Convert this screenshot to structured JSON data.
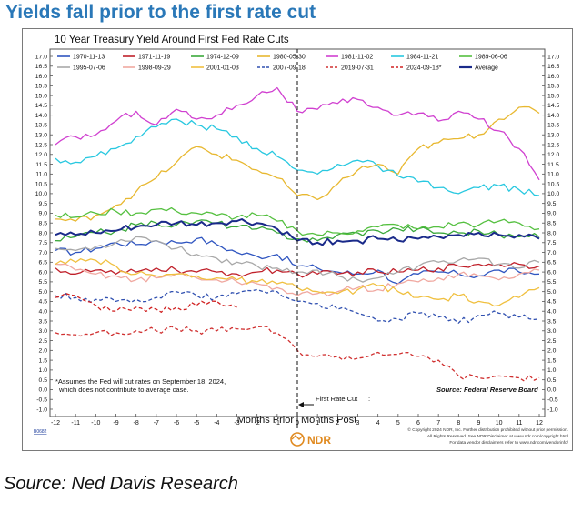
{
  "headline": "Yields fall prior to the first rate cut",
  "source_caption": "Source: Ned Davis Research",
  "chart_data": {
    "type": "line",
    "title": "10 Year Treasury Yield Around First Fed Rate Cuts",
    "xlim": [
      -12,
      12
    ],
    "ylim": [
      -1.0,
      17.0
    ],
    "x_ticks": [
      -12,
      -11,
      -10,
      -9,
      -8,
      -7,
      -6,
      -5,
      -4,
      -3,
      -2,
      -1,
      0,
      1,
      2,
      3,
      4,
      5,
      6,
      7,
      8,
      9,
      10,
      11,
      12
    ],
    "x_tick_labels": [
      "-12",
      "-11",
      "-10",
      "-9",
      "-8",
      "-7",
      "-6",
      "-5",
      "-4",
      "-3",
      "-2",
      "-1",
      "0",
      "1",
      "2",
      "3",
      "4",
      "5",
      "6",
      "7",
      "8",
      "9",
      "10",
      "11",
      "12"
    ],
    "y_ticks": [
      17.0,
      16.5,
      16.0,
      15.5,
      15.0,
      14.5,
      14.0,
      13.5,
      13.0,
      12.5,
      12.0,
      11.5,
      11.0,
      10.5,
      10.0,
      9.5,
      9.0,
      8.5,
      8.0,
      7.5,
      7.0,
      6.5,
      6.0,
      5.5,
      5.0,
      4.5,
      4.0,
      3.5,
      3.0,
      2.5,
      2.0,
      1.5,
      1.0,
      0.5,
      0.0,
      -0.5,
      -1.0
    ],
    "y_tick_labels": [
      "17.0",
      "16.5",
      "16.0",
      "15.5",
      "15.0",
      "14.5",
      "14.0",
      "13.5",
      "13.0",
      "12.5",
      "12.0",
      "11.5",
      "11.0",
      "10.5",
      "10.0",
      "9.5",
      "9.0",
      "8.5",
      "8.0",
      "7.5",
      "7.0",
      "6.5",
      "6.0",
      "5.5",
      "5.0",
      "4.5",
      "4.0",
      "3.5",
      "3.0",
      "2.5",
      "2.0",
      "1.5",
      "1.0",
      "0.5",
      "0.0",
      "-0.5",
      "-1.0"
    ],
    "x_axis_left_label": "Months Prior",
    "x_axis_right_label": "Months Post",
    "cut_marker_label": "First Rate Cut",
    "footnote": [
      "*Assumes the Fed will cut rates on September 18, 2024,",
      "which does not contribute to average case."
    ],
    "source_note": "Source:   Federal Reserve Board",
    "copyright": [
      "© Copyright 2024 NDR, Inc. Further distribution prohibited without prior permission.",
      "All Rights Reserved. See NDR Disclaimer at www.ndr.com/copyright.html",
      "For data vendor disclaimers refer to www.ndr.com/vendorinfo/"
    ],
    "logo_text": "NDR",
    "chart_code": "B0682",
    "legend_position": "top",
    "grid": false,
    "series": [
      {
        "name": "1970-11-13",
        "color": "#2f55c0",
        "dash": false,
        "x": [
          -12,
          -11,
          -10,
          -9,
          -8,
          -7,
          -6,
          -5,
          -4,
          -3,
          -2,
          -1,
          0,
          1,
          2,
          3,
          4,
          5,
          6,
          7,
          8,
          9,
          10,
          11,
          12
        ],
        "y": [
          7.1,
          7.0,
          7.2,
          7.5,
          7.4,
          7.6,
          7.5,
          7.7,
          7.4,
          7.0,
          6.8,
          6.9,
          6.3,
          6.2,
          6.0,
          5.9,
          6.1,
          5.4,
          5.9,
          6.0,
          5.9,
          5.8,
          6.1,
          6.0,
          5.9
        ]
      },
      {
        "name": "1971-11-19",
        "color": "#c0202a",
        "dash": false,
        "x": [
          -12,
          -11,
          -10,
          -9,
          -8,
          -7,
          -6,
          -5,
          -4,
          -3,
          -2,
          -1,
          0,
          1,
          2,
          3,
          4,
          5,
          6,
          7,
          8,
          9,
          10,
          11,
          12
        ],
        "y": [
          6.2,
          5.9,
          6.1,
          5.9,
          6.0,
          6.2,
          6.1,
          6.0,
          6.0,
          5.9,
          6.0,
          6.1,
          5.9,
          5.9,
          5.9,
          6.0,
          6.0,
          6.0,
          6.1,
          6.2,
          6.3,
          6.4,
          6.4,
          6.4,
          6.3
        ]
      },
      {
        "name": "1974-12-09",
        "color": "#3aa83a",
        "dash": false,
        "x": [
          -12,
          -11,
          -10,
          -9,
          -8,
          -7,
          -6,
          -5,
          -4,
          -3,
          -2,
          -1,
          0,
          1,
          2,
          3,
          4,
          5,
          6,
          7,
          8,
          9,
          10,
          11,
          12
        ],
        "y": [
          7.6,
          7.8,
          8.0,
          8.1,
          8.4,
          8.5,
          8.4,
          8.6,
          8.5,
          8.3,
          8.2,
          8.0,
          7.7,
          7.6,
          7.9,
          8.0,
          8.1,
          8.2,
          8.2,
          8.0,
          8.0,
          8.1,
          7.9,
          7.8,
          7.8
        ]
      },
      {
        "name": "1980-05-30",
        "color": "#e8b830",
        "dash": false,
        "x": [
          -12,
          -11,
          -10,
          -9,
          -8,
          -7,
          -6,
          -5,
          -4,
          -3,
          -2,
          -1,
          0,
          1,
          2,
          3,
          4,
          5,
          6,
          7,
          8,
          9,
          10,
          11,
          12
        ],
        "y": [
          8.7,
          8.6,
          8.9,
          9.4,
          10.1,
          10.8,
          11.6,
          12.4,
          12.0,
          11.7,
          11.2,
          10.8,
          9.9,
          9.7,
          10.5,
          11.2,
          11.5,
          11.0,
          12.3,
          12.6,
          12.8,
          13.0,
          13.8,
          14.4,
          14.1
        ]
      },
      {
        "name": "1981-11-02",
        "color": "#d040d0",
        "dash": false,
        "x": [
          -12,
          -11,
          -10,
          -9,
          -8,
          -7,
          -6,
          -5,
          -4,
          -3,
          -2,
          -1,
          0,
          1,
          2,
          3,
          4,
          5,
          6,
          7,
          8,
          9,
          10,
          11,
          12
        ],
        "y": [
          12.5,
          12.9,
          13.0,
          13.7,
          14.2,
          13.5,
          14.3,
          13.8,
          14.0,
          14.5,
          15.0,
          15.4,
          14.2,
          14.3,
          14.6,
          14.8,
          14.4,
          14.0,
          14.1,
          13.7,
          14.2,
          13.8,
          13.2,
          12.3,
          10.7
        ]
      },
      {
        "name": "1984-11-21",
        "color": "#28c8e0",
        "dash": false,
        "x": [
          -12,
          -11,
          -10,
          -9,
          -8,
          -7,
          -6,
          -5,
          -4,
          -3,
          -2,
          -1,
          0,
          1,
          2,
          3,
          4,
          5,
          6,
          7,
          8,
          9,
          10,
          11,
          12
        ],
        "y": [
          11.8,
          11.6,
          11.9,
          12.3,
          12.9,
          13.4,
          13.8,
          13.5,
          13.3,
          12.9,
          12.3,
          11.9,
          11.2,
          11.0,
          11.5,
          11.7,
          11.4,
          10.9,
          10.6,
          10.3,
          10.0,
          10.3,
          10.4,
          10.2,
          9.9
        ]
      },
      {
        "name": "1989-06-06",
        "color": "#55c040",
        "dash": false,
        "x": [
          -12,
          -11,
          -10,
          -9,
          -8,
          -7,
          -6,
          -5,
          -4,
          -3,
          -2,
          -1,
          0,
          1,
          2,
          3,
          4,
          5,
          6,
          7,
          8,
          9,
          10,
          11,
          12
        ],
        "y": [
          8.9,
          8.8,
          9.0,
          9.1,
          9.0,
          9.2,
          9.1,
          9.0,
          8.9,
          8.8,
          8.9,
          8.6,
          8.1,
          7.9,
          8.0,
          8.1,
          8.3,
          8.4,
          8.2,
          8.3,
          8.5,
          8.4,
          8.6,
          8.5,
          8.2
        ]
      },
      {
        "name": "1995-07-06",
        "color": "#a8a8a8",
        "dash": false,
        "x": [
          -12,
          -11,
          -10,
          -9,
          -8,
          -7,
          -6,
          -5,
          -4,
          -3,
          -2,
          -1,
          0,
          1,
          2,
          3,
          4,
          5,
          6,
          7,
          8,
          9,
          10,
          11,
          12
        ],
        "y": [
          7.2,
          7.1,
          7.3,
          7.5,
          7.8,
          7.6,
          7.2,
          6.9,
          6.7,
          6.5,
          6.3,
          6.2,
          6.0,
          6.1,
          5.8,
          5.6,
          5.7,
          6.0,
          6.3,
          6.5,
          6.6,
          6.7,
          6.4,
          6.2,
          6.5
        ]
      },
      {
        "name": "1998-09-29",
        "color": "#f0a8a0",
        "dash": false,
        "x": [
          -12,
          -11,
          -10,
          -9,
          -8,
          -7,
          -6,
          -5,
          -4,
          -3,
          -2,
          -1,
          0,
          1,
          2,
          3,
          4,
          5,
          6,
          7,
          8,
          9,
          10,
          11,
          12
        ],
        "y": [
          6.4,
          6.1,
          5.9,
          5.8,
          5.6,
          5.7,
          5.9,
          5.7,
          5.6,
          5.5,
          5.4,
          5.2,
          4.8,
          4.9,
          5.0,
          5.2,
          5.1,
          5.4,
          5.5,
          5.7,
          5.9,
          5.8,
          5.6,
          5.9,
          6.1
        ]
      },
      {
        "name": "2001-01-03",
        "color": "#f0c040",
        "dash": false,
        "x": [
          -12,
          -11,
          -10,
          -9,
          -8,
          -7,
          -6,
          -5,
          -4,
          -3,
          -2,
          -1,
          0,
          1,
          2,
          3,
          4,
          5,
          6,
          7,
          8,
          9,
          10,
          11,
          12
        ],
        "y": [
          6.4,
          6.5,
          6.6,
          6.3,
          5.9,
          5.8,
          5.9,
          5.8,
          5.7,
          5.6,
          5.5,
          5.4,
          5.2,
          5.0,
          4.9,
          5.1,
          5.3,
          5.0,
          4.7,
          4.6,
          4.8,
          4.5,
          4.3,
          4.7,
          5.2
        ]
      },
      {
        "name": "2007-09-18",
        "color": "#3050b0",
        "dash": true,
        "x": [
          -12,
          -11,
          -10,
          -9,
          -8,
          -7,
          -6,
          -5,
          -4,
          -3,
          -2,
          -1,
          0,
          1,
          2,
          3,
          4,
          5,
          6,
          7,
          8,
          9,
          10,
          11,
          12
        ],
        "y": [
          4.8,
          4.7,
          4.6,
          4.5,
          4.6,
          4.7,
          5.0,
          4.8,
          4.7,
          4.9,
          5.1,
          5.0,
          4.5,
          4.4,
          4.1,
          3.9,
          3.5,
          3.6,
          3.9,
          3.7,
          3.4,
          3.8,
          3.9,
          3.7,
          3.6
        ]
      },
      {
        "name": "2019-07-31",
        "color": "#d03030",
        "dash": true,
        "x": [
          -12,
          -11,
          -10,
          -9,
          -8,
          -7,
          -6,
          -5,
          -4,
          -3,
          -2,
          -1,
          0,
          1,
          2,
          3,
          4,
          5,
          6,
          7,
          8,
          9,
          10,
          11,
          12
        ],
        "y": [
          2.9,
          2.8,
          2.9,
          2.9,
          3.0,
          3.0,
          3.1,
          3.0,
          3.0,
          3.1,
          3.2,
          2.9,
          2.0,
          1.7,
          1.7,
          1.6,
          1.9,
          1.8,
          1.7,
          1.5,
          0.7,
          0.6,
          0.7,
          0.6,
          0.6
        ]
      },
      {
        "name": "2024-09-18*",
        "color": "#d02020",
        "dash": true,
        "x": [
          -12,
          -11,
          -10,
          -9,
          -8,
          -7,
          -6,
          -5,
          -4,
          -3
        ],
        "y": [
          4.7,
          4.8,
          4.3,
          4.0,
          4.2,
          4.1,
          4.2,
          4.3,
          4.5,
          4.2
        ]
      },
      {
        "name": "Average",
        "color": "#1a2a8a",
        "dash": false,
        "bold": true,
        "x": [
          -12,
          -11,
          -10,
          -9,
          -8,
          -7,
          -6,
          -5,
          -4,
          -3,
          -2,
          -1,
          0,
          1,
          2,
          3,
          4,
          5,
          6,
          7,
          8,
          9,
          10,
          11,
          12
        ],
        "y": [
          7.9,
          7.9,
          8.0,
          8.1,
          8.3,
          8.4,
          8.5,
          8.4,
          8.5,
          8.6,
          8.5,
          8.2,
          7.6,
          7.5,
          7.6,
          7.6,
          7.7,
          7.6,
          7.7,
          7.8,
          7.9,
          8.0,
          7.9,
          7.9,
          7.7
        ]
      }
    ]
  }
}
